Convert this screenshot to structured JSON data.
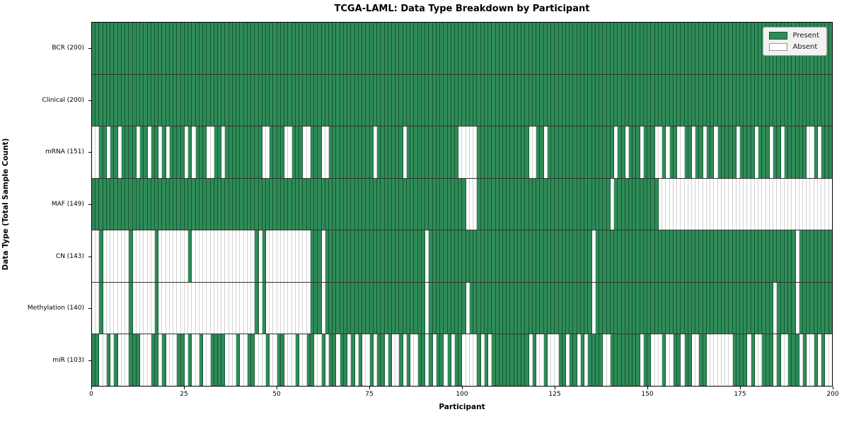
{
  "title": "TCGA-LAML: Data Type Breakdown by Participant",
  "axes": {
    "xlabel": "Participant",
    "ylabel": "Data Type (Total Sample Count)"
  },
  "legend": {
    "items": [
      {
        "label": "Present",
        "color": "#2e8b57"
      },
      {
        "label": "Absent",
        "color": "#ffffff"
      }
    ]
  },
  "colors": {
    "present": "#2e8b57",
    "absent": "#ffffff",
    "plot_border": "#000000",
    "legend_bg": "#f2f2f2"
  },
  "chart_data": {
    "type": "heatmap",
    "title": "TCGA-LAML: Data Type Breakdown by Participant",
    "xlabel": "Participant",
    "ylabel": "Data Type (Total Sample Count)",
    "legend": [
      "Present",
      "Absent"
    ],
    "legend_position": "upper right",
    "n_participants": 200,
    "x_range": [
      0,
      200
    ],
    "x_ticks": [
      0,
      25,
      50,
      75,
      100,
      125,
      150,
      175,
      200
    ],
    "grid": false,
    "rows": [
      {
        "label": "BCR (200)",
        "data_type": "BCR",
        "present_count": 200,
        "absent_participants": []
      },
      {
        "label": "Clinical (200)",
        "data_type": "Clinical",
        "present_count": 200,
        "absent_participants": []
      },
      {
        "label": "mRNA (151)",
        "data_type": "mRNA",
        "present_count": 151,
        "absent_participants": [
          0,
          1,
          4,
          7,
          12,
          15,
          18,
          20,
          25,
          27,
          31,
          32,
          35,
          46,
          47,
          52,
          53,
          57,
          58,
          62,
          63,
          76,
          84,
          99,
          100,
          101,
          102,
          103,
          118,
          119,
          122,
          141,
          144,
          148,
          152,
          153,
          155,
          158,
          159,
          162,
          165,
          168,
          174,
          179,
          183,
          186,
          193,
          194,
          196
        ]
      },
      {
        "label": "MAF (149)",
        "data_type": "MAF",
        "present_count": 149,
        "absent_participants": [
          101,
          102,
          103,
          140,
          153,
          154,
          155,
          156,
          157,
          158,
          159,
          160,
          161,
          162,
          163,
          164,
          165,
          166,
          167,
          168,
          169,
          170,
          171,
          172,
          173,
          174,
          175,
          176,
          177,
          178,
          179,
          180,
          181,
          182,
          183,
          184,
          185,
          186,
          187,
          188,
          189,
          190,
          191,
          192,
          193,
          194,
          195,
          196,
          197,
          198,
          199
        ]
      },
      {
        "label": "CN (143)",
        "data_type": "CN",
        "present_count": 143,
        "absent_participants": [
          0,
          1,
          3,
          4,
          5,
          6,
          7,
          8,
          9,
          11,
          12,
          13,
          14,
          15,
          16,
          18,
          19,
          20,
          21,
          22,
          23,
          24,
          25,
          27,
          28,
          29,
          30,
          31,
          32,
          33,
          34,
          35,
          36,
          37,
          38,
          39,
          40,
          41,
          42,
          43,
          45,
          47,
          48,
          49,
          50,
          51,
          52,
          53,
          54,
          55,
          56,
          57,
          58,
          62,
          90,
          135,
          190
        ]
      },
      {
        "label": "Methylation (140)",
        "data_type": "Methylation",
        "present_count": 140,
        "absent_participants": [
          0,
          1,
          3,
          4,
          5,
          6,
          7,
          8,
          9,
          11,
          12,
          13,
          14,
          15,
          16,
          18,
          19,
          20,
          21,
          22,
          23,
          24,
          25,
          26,
          27,
          28,
          29,
          30,
          31,
          32,
          33,
          34,
          35,
          36,
          37,
          38,
          39,
          40,
          41,
          42,
          43,
          45,
          47,
          48,
          49,
          50,
          51,
          52,
          53,
          54,
          55,
          56,
          57,
          58,
          62,
          90,
          101,
          135,
          184,
          190
        ]
      },
      {
        "label": "miR (103)",
        "data_type": "miR",
        "present_count": 103,
        "absent_participants": [
          2,
          3,
          5,
          7,
          8,
          9,
          13,
          14,
          15,
          18,
          20,
          21,
          22,
          25,
          27,
          28,
          30,
          31,
          36,
          37,
          38,
          40,
          41,
          44,
          45,
          46,
          48,
          49,
          52,
          53,
          54,
          56,
          57,
          60,
          61,
          63,
          66,
          69,
          71,
          73,
          74,
          76,
          79,
          81,
          82,
          84,
          86,
          87,
          90,
          92,
          95,
          97,
          100,
          101,
          102,
          103,
          105,
          107,
          118,
          120,
          121,
          123,
          124,
          125,
          128,
          131,
          133,
          138,
          139,
          148,
          151,
          152,
          153,
          155,
          156,
          159,
          162,
          163,
          166,
          167,
          168,
          169,
          170,
          171,
          172,
          177,
          179,
          180,
          184,
          186,
          187,
          191,
          193,
          194,
          196,
          198,
          199
        ]
      }
    ]
  }
}
